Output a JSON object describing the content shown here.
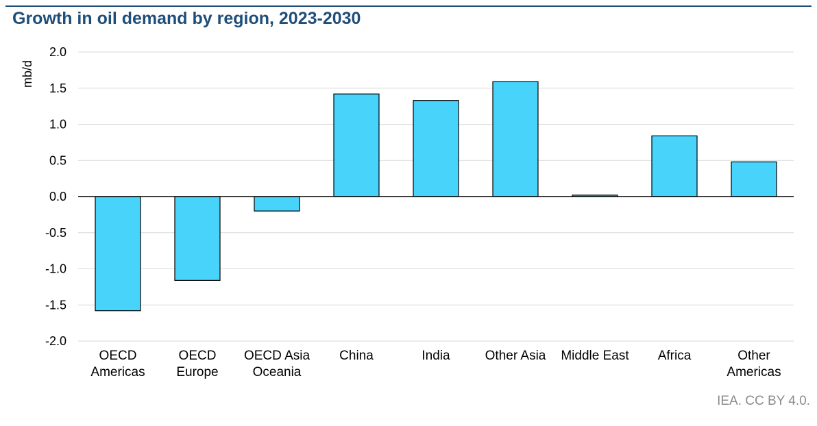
{
  "title": "Growth in oil demand by region, 2023-2030",
  "source": "IEA. CC BY 4.0.",
  "colors": {
    "bar": "#48d3fb",
    "bar_stroke": "#000000",
    "title": "#1f4e79",
    "grid": "#d9d9d9",
    "source": "#8c8c8c"
  },
  "chart_data": {
    "type": "bar",
    "title": "Growth in oil demand by region, 2023-2030",
    "xlabel": "",
    "ylabel": "mb/d",
    "ylim": [
      -2.0,
      2.0
    ],
    "yticks": [
      "2.0",
      "1.5",
      "1.0",
      "0.5",
      "0.0",
      "-0.5",
      "-1.0",
      "-1.5",
      "-2.0"
    ],
    "ytick_values": [
      2.0,
      1.5,
      1.0,
      0.5,
      0.0,
      -0.5,
      -1.0,
      -1.5,
      -2.0
    ],
    "grid": true,
    "legend": "none",
    "categories": [
      [
        "OECD",
        "Americas"
      ],
      [
        "OECD",
        "Europe"
      ],
      [
        "OECD Asia",
        "Oceania"
      ],
      [
        "China"
      ],
      [
        "India"
      ],
      [
        "Other Asia"
      ],
      [
        "Middle East"
      ],
      [
        "Africa"
      ],
      [
        "Other",
        "Americas"
      ]
    ],
    "values": [
      -1.58,
      -1.16,
      -0.2,
      1.42,
      1.33,
      1.59,
      0.02,
      0.84,
      0.48
    ]
  }
}
